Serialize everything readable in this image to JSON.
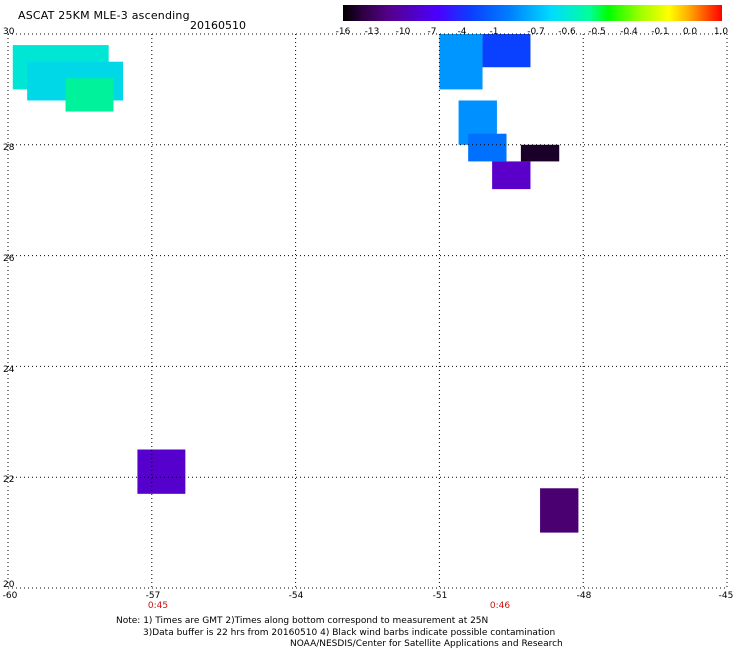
{
  "header": {
    "title": "ASCAT 25KM MLE-3 ascending",
    "date": "20160510"
  },
  "color_scale": {
    "labels": [
      "-16",
      "-13",
      "-10",
      "-7",
      "-4",
      "-1",
      "-0.7",
      "-0.6",
      "-0.5",
      "-0.4",
      "-0.1",
      "0.0",
      "1.0"
    ],
    "colors": [
      "#000000",
      "#55008a",
      "#0a40ff",
      "#00dcff",
      "#00ff00",
      "#ffff00",
      "#ff0000"
    ]
  },
  "axes": {
    "lat_labels": [
      "30",
      "28",
      "26",
      "24",
      "22",
      "20"
    ],
    "lon_labels": [
      "-60",
      "-57",
      "-54",
      "-51",
      "-48",
      "-45"
    ]
  },
  "time_labels": [
    "0:45",
    "0:46"
  ],
  "notes": {
    "line1": "Note: 1) Times are GMT 2)Times along bottom correspond to measurement at 25N",
    "line2": "3)Data buffer is 22 hrs from 20160510 4) Black wind barbs indicate possible contamination",
    "line3": "NOAA/NESDIS/Center for Satellite Applications and Research"
  },
  "map": {
    "lon_range": [
      -60,
      -45
    ],
    "lat_range": [
      20,
      30
    ],
    "gridlines": true,
    "swaths": [
      {
        "name": "swath-nw-upper",
        "lon": [
          -59.9,
          -57.9
        ],
        "lat": [
          29.0,
          29.8
        ],
        "color": "#00e6d4"
      },
      {
        "name": "swath-nw-mid",
        "lon": [
          -59.6,
          -57.6
        ],
        "lat": [
          28.8,
          29.5
        ],
        "color": "#00d8e8"
      },
      {
        "name": "swath-nw-lower",
        "lon": [
          -58.8,
          -57.8
        ],
        "lat": [
          28.6,
          29.2
        ],
        "color": "#00f29a"
      },
      {
        "name": "swath-ne-a",
        "lon": [
          -51.0,
          -50.1
        ],
        "lat": [
          29.0,
          30.0
        ],
        "color": "#0096ff"
      },
      {
        "name": "swath-ne-b",
        "lon": [
          -50.1,
          -49.1
        ],
        "lat": [
          29.4,
          30.0
        ],
        "color": "#0a40ff"
      },
      {
        "name": "swath-ne-c",
        "lon": [
          -50.6,
          -49.8
        ],
        "lat": [
          28.0,
          28.8
        ],
        "color": "#0090ff"
      },
      {
        "name": "swath-ne-d",
        "lon": [
          -50.4,
          -49.6
        ],
        "lat": [
          27.7,
          28.2
        ],
        "color": "#0070ff"
      },
      {
        "name": "swath-ne-dark",
        "lon": [
          -49.3,
          -48.5
        ],
        "lat": [
          27.7,
          28.0
        ],
        "color": "#1a0028"
      },
      {
        "name": "swath-ne-purple",
        "lon": [
          -49.9,
          -49.1
        ],
        "lat": [
          27.2,
          27.7
        ],
        "color": "#5a00c8"
      },
      {
        "name": "swath-sw",
        "lon": [
          -57.3,
          -56.3
        ],
        "lat": [
          21.7,
          22.5
        ],
        "color": "#5500cc"
      },
      {
        "name": "swath-se",
        "lon": [
          -48.9,
          -48.1
        ],
        "lat": [
          21.0,
          21.8
        ],
        "color": "#4a0070"
      }
    ]
  }
}
